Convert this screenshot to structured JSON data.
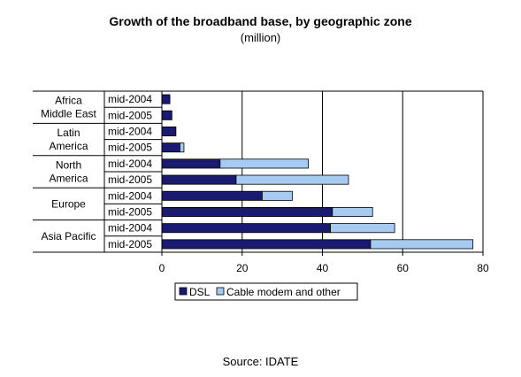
{
  "chart_data": {
    "type": "bar",
    "orientation": "horizontal",
    "stacked": true,
    "title": "Growth of the broadband base, by geographic zone",
    "subtitle": "(million)",
    "groups": [
      {
        "name_lines": [
          "Africa",
          "Middle East"
        ],
        "periods": [
          "mid-2004",
          "mid-2005"
        ]
      },
      {
        "name_lines": [
          "Latin",
          "America"
        ],
        "periods": [
          "mid-2004",
          "mid-2005"
        ]
      },
      {
        "name_lines": [
          "North",
          "America"
        ],
        "periods": [
          "mid-2004",
          "mid-2005"
        ]
      },
      {
        "name_lines": [
          "Europe"
        ],
        "periods": [
          "mid-2004",
          "mid-2005"
        ]
      },
      {
        "name_lines": [
          "Asia Pacific"
        ],
        "periods": [
          "mid-2004",
          "mid-2005"
        ]
      }
    ],
    "series": [
      {
        "name": "DSL",
        "color": "#1a1a6e",
        "values": [
          2,
          2.5,
          3.5,
          4.5,
          14.5,
          18.5,
          25,
          42.5,
          42,
          52
        ]
      },
      {
        "name": "Cable modem and other",
        "color": "#a6caf0",
        "values": [
          0,
          0,
          0,
          1,
          22,
          28,
          7.5,
          10,
          16,
          25.5
        ]
      }
    ],
    "xlim": [
      0,
      80
    ],
    "xticks": [
      "0",
      "20",
      "40",
      "60",
      "80"
    ],
    "grid": true,
    "legend_position": "bottom"
  },
  "source": "Source: IDATE"
}
